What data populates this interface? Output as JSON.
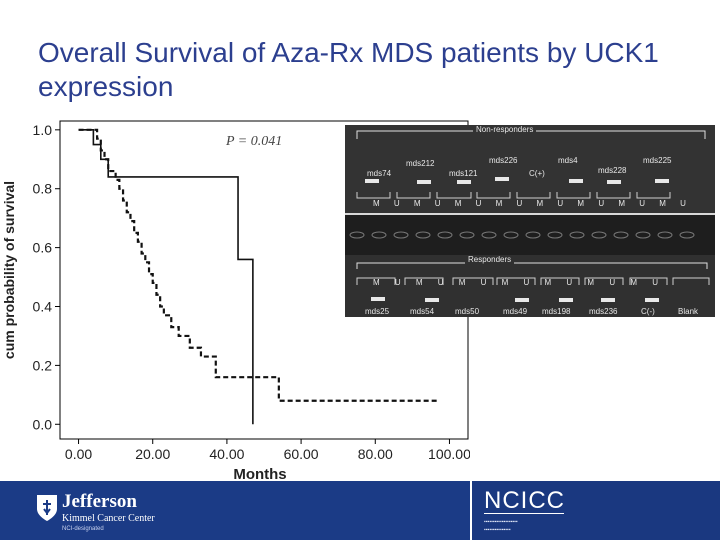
{
  "slide": {
    "title": "Overall Survival of Aza-Rx MDS patients by UCK1 expression"
  },
  "chart_data": {
    "type": "line",
    "step": true,
    "title": "",
    "xlabel": "Months",
    "ylabel": "cum probability of survival",
    "annotation": "P = 0.041",
    "xlim": [
      -5,
      105
    ],
    "ylim": [
      -0.05,
      1.03
    ],
    "xticks": [
      "0.00",
      "20.00",
      "40.00",
      "60.00",
      "80.00",
      "100.00"
    ],
    "xtick_values": [
      0,
      20,
      40,
      60,
      80,
      100
    ],
    "yticks": [
      "0.0",
      "0.2",
      "0.4",
      "0.6",
      "0.8",
      "1.0"
    ],
    "ytick_values": [
      0,
      0.2,
      0.4,
      0.6,
      0.8,
      1.0
    ],
    "grid": false,
    "series": [
      {
        "style": "solid",
        "x": [
          0,
          4,
          6,
          8,
          43,
          43,
          47,
          47
        ],
        "y": [
          1.0,
          0.95,
          0.9,
          0.84,
          0.84,
          0.56,
          0.56,
          0.0
        ]
      },
      {
        "style": "dashed",
        "x": [
          0,
          5,
          6,
          7,
          8,
          10,
          11,
          12,
          13,
          14,
          15,
          16,
          17,
          18,
          19,
          20,
          21,
          22,
          23,
          25,
          27,
          30,
          33,
          37,
          54,
          97
        ],
        "y": [
          1.0,
          0.97,
          0.93,
          0.9,
          0.86,
          0.83,
          0.8,
          0.76,
          0.72,
          0.69,
          0.65,
          0.62,
          0.58,
          0.55,
          0.51,
          0.48,
          0.44,
          0.4,
          0.37,
          0.33,
          0.3,
          0.26,
          0.23,
          0.16,
          0.08,
          0.08
        ]
      }
    ]
  },
  "gel": {
    "top_label": "Non-responders",
    "top_samples": [
      "mds74",
      "mds212",
      "mds121",
      "mds226",
      "C(+)",
      "mds4",
      "mds228",
      "mds225"
    ],
    "top_lanes": "M U M U M U M U M U M U M U M U",
    "bottom_label": "Responders",
    "bottom_lanes": "M U M U M U M U M U M U M U",
    "bottom_samples": [
      "mds25",
      "mds54",
      "mds50",
      "mds49",
      "mds198",
      "mds236",
      "C(-)",
      "Blank"
    ]
  },
  "footer": {
    "jefferson_name": "Jefferson",
    "jefferson_center": "Kimmel Cancer Center",
    "jefferson_designation": "NCI-designated",
    "ncicc_logo_text": "NCICC"
  }
}
